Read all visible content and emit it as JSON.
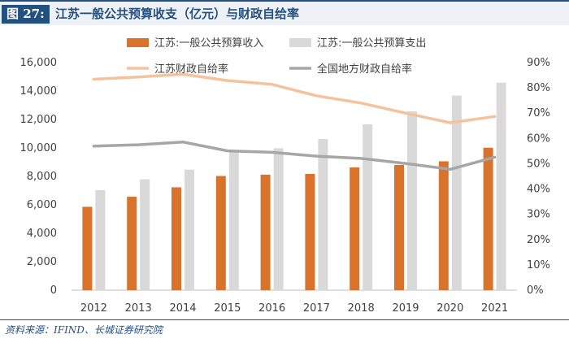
{
  "figure": {
    "label": "图 27:",
    "title": "江苏一般公共预算收支（亿元）与财政自给率",
    "source": "资料来源：IFIND、长城证券研究院"
  },
  "colors": {
    "revenue": "#d9722b",
    "expenditure": "#d9d9d9",
    "js_ratio": "#f4c29d",
    "national_ratio": "#a6a6a6",
    "frame": "#24507f"
  },
  "chart_data": {
    "type": "bar",
    "categories": [
      "2012",
      "2013",
      "2014",
      "2015",
      "2016",
      "2017",
      "2018",
      "2019",
      "2020",
      "2021"
    ],
    "series": [
      {
        "name": "江苏:一般公共预算收入",
        "kind": "bar",
        "axis": "left",
        "values": [
          5860,
          6568,
          7233,
          8029,
          8121,
          8172,
          8630,
          8802,
          9059,
          10015
        ]
      },
      {
        "name": "江苏:一般公共预算支出",
        "kind": "bar",
        "axis": "left",
        "values": [
          7028,
          7798,
          8472,
          9688,
          9982,
          10622,
          11658,
          12573,
          13682,
          14586
        ]
      },
      {
        "name": "江苏财政自给率",
        "kind": "line",
        "axis": "right",
        "values": [
          0.834,
          0.843,
          0.854,
          0.829,
          0.814,
          0.769,
          0.74,
          0.7,
          0.662,
          0.687
        ]
      },
      {
        "name": "全国地方财政自给率",
        "kind": "line",
        "axis": "right",
        "values": [
          0.57,
          0.575,
          0.586,
          0.551,
          0.545,
          0.53,
          0.521,
          0.501,
          0.478,
          0.526
        ]
      }
    ],
    "y_left": {
      "min": 0,
      "max": 16000,
      "ticks": [
        "0",
        "2,000",
        "4,000",
        "6,000",
        "8,000",
        "10,000",
        "12,000",
        "14,000",
        "16,000"
      ]
    },
    "y_right": {
      "min": 0,
      "max": 0.9,
      "ticks": [
        "0%",
        "10%",
        "20%",
        "30%",
        "40%",
        "50%",
        "60%",
        "70%",
        "80%",
        "90%"
      ]
    },
    "legend": "top"
  }
}
